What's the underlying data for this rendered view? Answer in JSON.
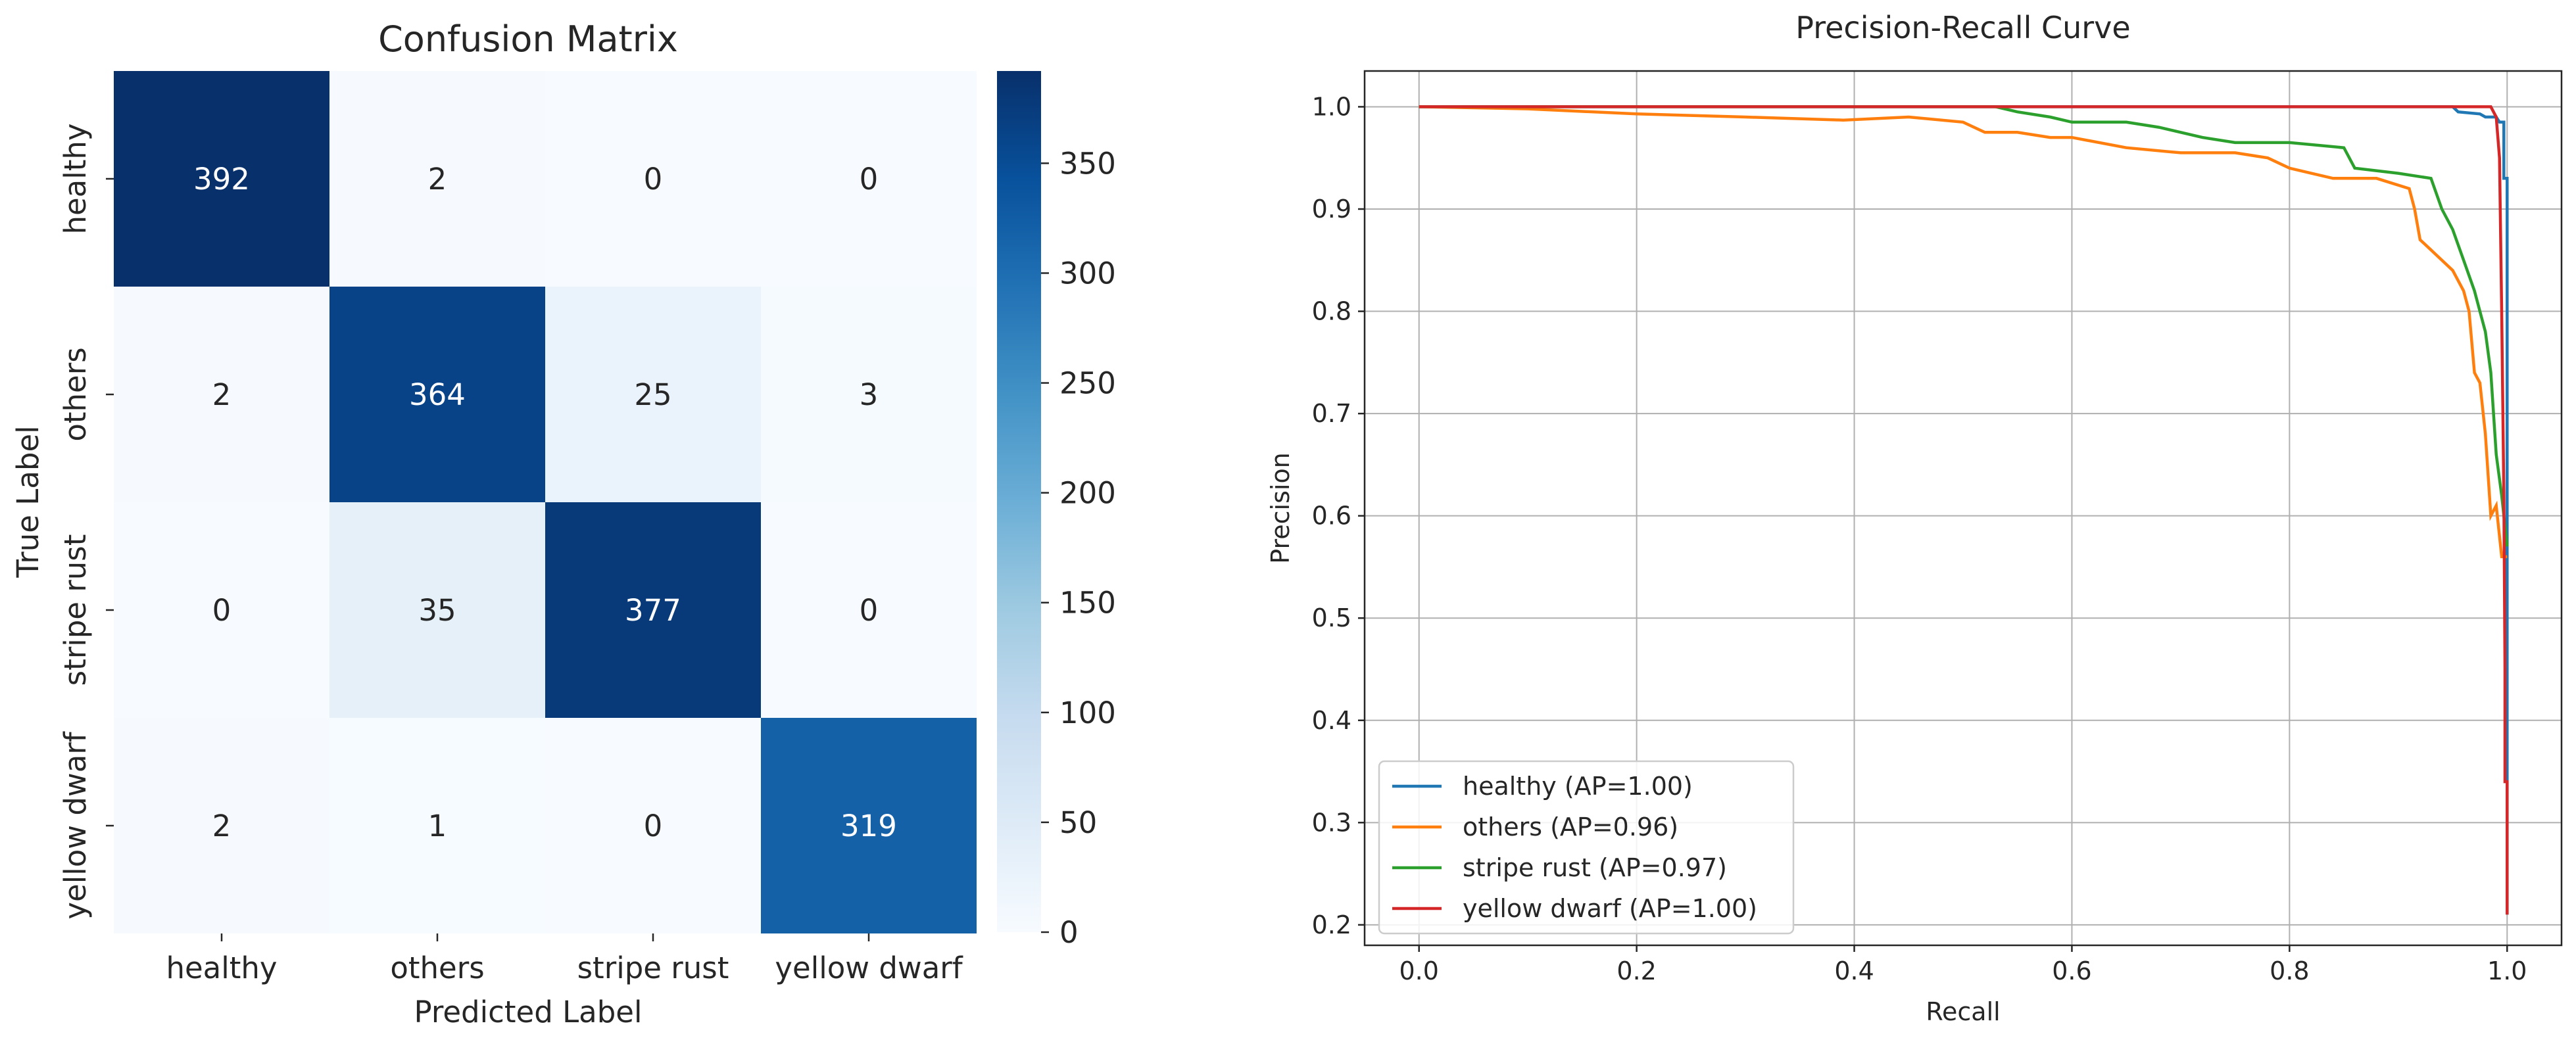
{
  "chart_data": [
    {
      "type": "heatmap",
      "title": "Confusion Matrix",
      "xlabel": "Predicted Label",
      "ylabel": "True Label",
      "x_categories": [
        "healthy",
        "others",
        "stripe rust",
        "yellow dwarf"
      ],
      "y_categories": [
        "healthy",
        "others",
        "stripe rust",
        "yellow dwarf"
      ],
      "matrix": [
        [
          392,
          2,
          0,
          0
        ],
        [
          2,
          364,
          25,
          3
        ],
        [
          0,
          35,
          377,
          0
        ],
        [
          2,
          1,
          0,
          319
        ]
      ],
      "colorbar": {
        "colormap": "Blues",
        "vmin": 0,
        "vmax": 392,
        "ticks": [
          0,
          50,
          100,
          150,
          200,
          250,
          300,
          350
        ],
        "tick_labels": [
          "0",
          "50",
          "100",
          "150",
          "200",
          "250",
          "300",
          "350"
        ]
      }
    },
    {
      "type": "line",
      "title": "Precision-Recall Curve",
      "xlabel": "Recall",
      "ylabel": "Precision",
      "xlim": [
        -0.05,
        1.05
      ],
      "ylim": [
        0.18,
        1.035
      ],
      "grid": true,
      "x_ticks": [
        0.0,
        0.2,
        0.4,
        0.6,
        0.8,
        1.0
      ],
      "x_tick_labels": [
        "0.0",
        "0.2",
        "0.4",
        "0.6",
        "0.8",
        "1.0"
      ],
      "y_ticks": [
        0.2,
        0.3,
        0.4,
        0.5,
        0.6,
        0.7,
        0.8,
        0.9,
        1.0
      ],
      "y_tick_labels": [
        "0.2",
        "0.3",
        "0.4",
        "0.5",
        "0.6",
        "0.7",
        "0.8",
        "0.9",
        "1.0"
      ],
      "legend_position": "lower-left",
      "series": [
        {
          "name": "healthy (AP=1.00)",
          "color": "#1f77b4",
          "points": [
            [
              0,
              1.0
            ],
            [
              0.95,
              1.0
            ],
            [
              0.955,
              0.995
            ],
            [
              0.975,
              0.993
            ],
            [
              0.98,
              0.99
            ],
            [
              0.99,
              0.99
            ],
            [
              0.993,
              0.985
            ],
            [
              0.997,
              0.985
            ],
            [
              0.997,
              0.93
            ],
            [
              1.0,
              0.93
            ],
            [
              1.0,
              0.21
            ]
          ]
        },
        {
          "name": "others (AP=0.96)",
          "color": "#ff7f0e",
          "points": [
            [
              0,
              1.0
            ],
            [
              0.1,
              0.998
            ],
            [
              0.2,
              0.993
            ],
            [
              0.3,
              0.99
            ],
            [
              0.39,
              0.987
            ],
            [
              0.45,
              0.99
            ],
            [
              0.5,
              0.985
            ],
            [
              0.52,
              0.975
            ],
            [
              0.55,
              0.975
            ],
            [
              0.58,
              0.97
            ],
            [
              0.6,
              0.97
            ],
            [
              0.65,
              0.96
            ],
            [
              0.7,
              0.955
            ],
            [
              0.75,
              0.955
            ],
            [
              0.78,
              0.95
            ],
            [
              0.8,
              0.94
            ],
            [
              0.82,
              0.935
            ],
            [
              0.84,
              0.93
            ],
            [
              0.88,
              0.93
            ],
            [
              0.91,
              0.92
            ],
            [
              0.915,
              0.9
            ],
            [
              0.92,
              0.87
            ],
            [
              0.93,
              0.86
            ],
            [
              0.94,
              0.85
            ],
            [
              0.95,
              0.84
            ],
            [
              0.96,
              0.82
            ],
            [
              0.965,
              0.8
            ],
            [
              0.97,
              0.74
            ],
            [
              0.975,
              0.73
            ],
            [
              0.98,
              0.68
            ],
            [
              0.985,
              0.6
            ],
            [
              0.99,
              0.61
            ],
            [
              0.995,
              0.56
            ],
            [
              1.0,
              0.56
            ]
          ]
        },
        {
          "name": "stripe rust (AP=0.97)",
          "color": "#2ca02c",
          "points": [
            [
              0,
              1.0
            ],
            [
              0.53,
              1.0
            ],
            [
              0.55,
              0.995
            ],
            [
              0.58,
              0.99
            ],
            [
              0.6,
              0.985
            ],
            [
              0.65,
              0.985
            ],
            [
              0.68,
              0.98
            ],
            [
              0.7,
              0.975
            ],
            [
              0.72,
              0.97
            ],
            [
              0.75,
              0.965
            ],
            [
              0.8,
              0.965
            ],
            [
              0.85,
              0.96
            ],
            [
              0.86,
              0.94
            ],
            [
              0.9,
              0.935
            ],
            [
              0.93,
              0.93
            ],
            [
              0.94,
              0.9
            ],
            [
              0.95,
              0.88
            ],
            [
              0.96,
              0.85
            ],
            [
              0.97,
              0.82
            ],
            [
              0.975,
              0.8
            ],
            [
              0.98,
              0.78
            ],
            [
              0.985,
              0.74
            ],
            [
              0.99,
              0.66
            ],
            [
              0.995,
              0.62
            ],
            [
              1.0,
              0.57
            ]
          ]
        },
        {
          "name": "yellow dwarf (AP=1.00)",
          "color": "#d62728",
          "points": [
            [
              0,
              1.0
            ],
            [
              0.985,
              1.0
            ],
            [
              0.99,
              0.99
            ],
            [
              0.993,
              0.95
            ],
            [
              0.995,
              0.8
            ],
            [
              0.997,
              0.62
            ],
            [
              0.998,
              0.45
            ],
            [
              0.998,
              0.34
            ],
            [
              1.0,
              0.34
            ],
            [
              1.0,
              0.21
            ]
          ]
        }
      ]
    }
  ]
}
